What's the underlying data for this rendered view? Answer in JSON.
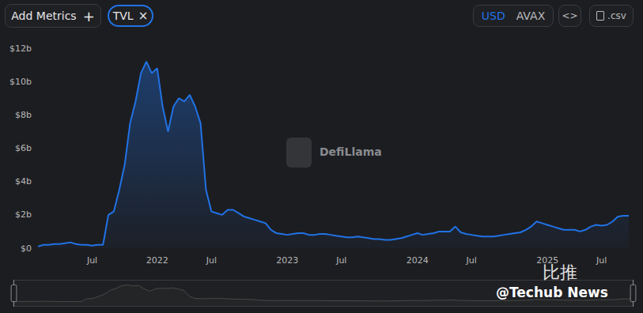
{
  "toolbar": {
    "add_metrics": "Add Metrics",
    "add_icon": "+",
    "metric": "TVL",
    "metric_close": "×",
    "currencies": [
      "USD",
      "AVAX"
    ],
    "active_currency": "USD",
    "embed": "<>",
    "csv": ".csv"
  },
  "watermarks": [
    "DefiLlama",
    "比推",
    "@Techub News"
  ],
  "chart_data": {
    "type": "area",
    "color": "#2172e5",
    "grid": false,
    "categories": [
      null,
      null,
      null,
      null,
      null,
      null,
      null,
      null,
      null,
      null,
      "Jul",
      null,
      null,
      null,
      null,
      null,
      null,
      null,
      null,
      null,
      null,
      null,
      "2022",
      null,
      null,
      null,
      null,
      null,
      null,
      null,
      null,
      null,
      "Jul",
      null,
      null,
      null,
      null,
      null,
      null,
      null,
      null,
      null,
      null,
      null,
      null,
      null,
      "2023",
      null,
      null,
      null,
      null,
      null,
      null,
      null,
      null,
      null,
      "Jul",
      null,
      null,
      null,
      null,
      null,
      null,
      null,
      null,
      null,
      null,
      null,
      null,
      null,
      "2024",
      null,
      null,
      null,
      null,
      null,
      null,
      null,
      null,
      null,
      "Jul",
      null,
      null,
      null,
      null,
      null,
      null,
      null,
      null,
      null,
      null,
      null,
      null,
      null,
      "2025",
      null,
      null,
      null,
      null,
      null,
      null,
      null,
      null,
      null,
      "Jul",
      null,
      null,
      null,
      null,
      null
    ],
    "values": [
      0.1,
      0.2,
      0.2,
      0.25,
      0.25,
      0.3,
      0.35,
      0.25,
      0.2,
      0.2,
      0.15,
      0.2,
      0.2,
      2.0,
      2.2,
      3.5,
      5.0,
      7.5,
      8.8,
      10.5,
      11.2,
      10.5,
      10.8,
      8.5,
      7.0,
      8.5,
      9.0,
      8.8,
      9.2,
      8.5,
      7.5,
      3.5,
      2.2,
      2.1,
      2.0,
      2.3,
      2.3,
      2.1,
      1.9,
      1.8,
      1.7,
      1.6,
      1.5,
      1.1,
      0.9,
      0.85,
      0.8,
      0.85,
      0.9,
      0.9,
      0.8,
      0.8,
      0.85,
      0.85,
      0.8,
      0.75,
      0.7,
      0.65,
      0.65,
      0.7,
      0.65,
      0.6,
      0.55,
      0.55,
      0.5,
      0.5,
      0.55,
      0.6,
      0.7,
      0.8,
      0.9,
      0.8,
      0.85,
      0.9,
      1.0,
      1.0,
      1.0,
      1.3,
      0.95,
      0.85,
      0.8,
      0.75,
      0.7,
      0.7,
      0.7,
      0.75,
      0.8,
      0.85,
      0.9,
      0.95,
      1.1,
      1.3,
      1.6,
      1.5,
      1.4,
      1.3,
      1.2,
      1.1,
      1.1,
      1.1,
      1.0,
      1.1,
      1.3,
      1.4,
      1.35,
      1.4,
      1.6,
      1.9,
      1.95,
      1.95
    ],
    "ylim": [
      0,
      12
    ],
    "yticks": [
      {
        "value": 0,
        "label": "$0"
      },
      {
        "value": 2,
        "label": "$2b"
      },
      {
        "value": 4,
        "label": "$4b"
      },
      {
        "value": 6,
        "label": "$6b"
      },
      {
        "value": 8,
        "label": "$8b"
      },
      {
        "value": 10,
        "label": "$10b"
      },
      {
        "value": 12,
        "label": "$12b"
      }
    ]
  }
}
